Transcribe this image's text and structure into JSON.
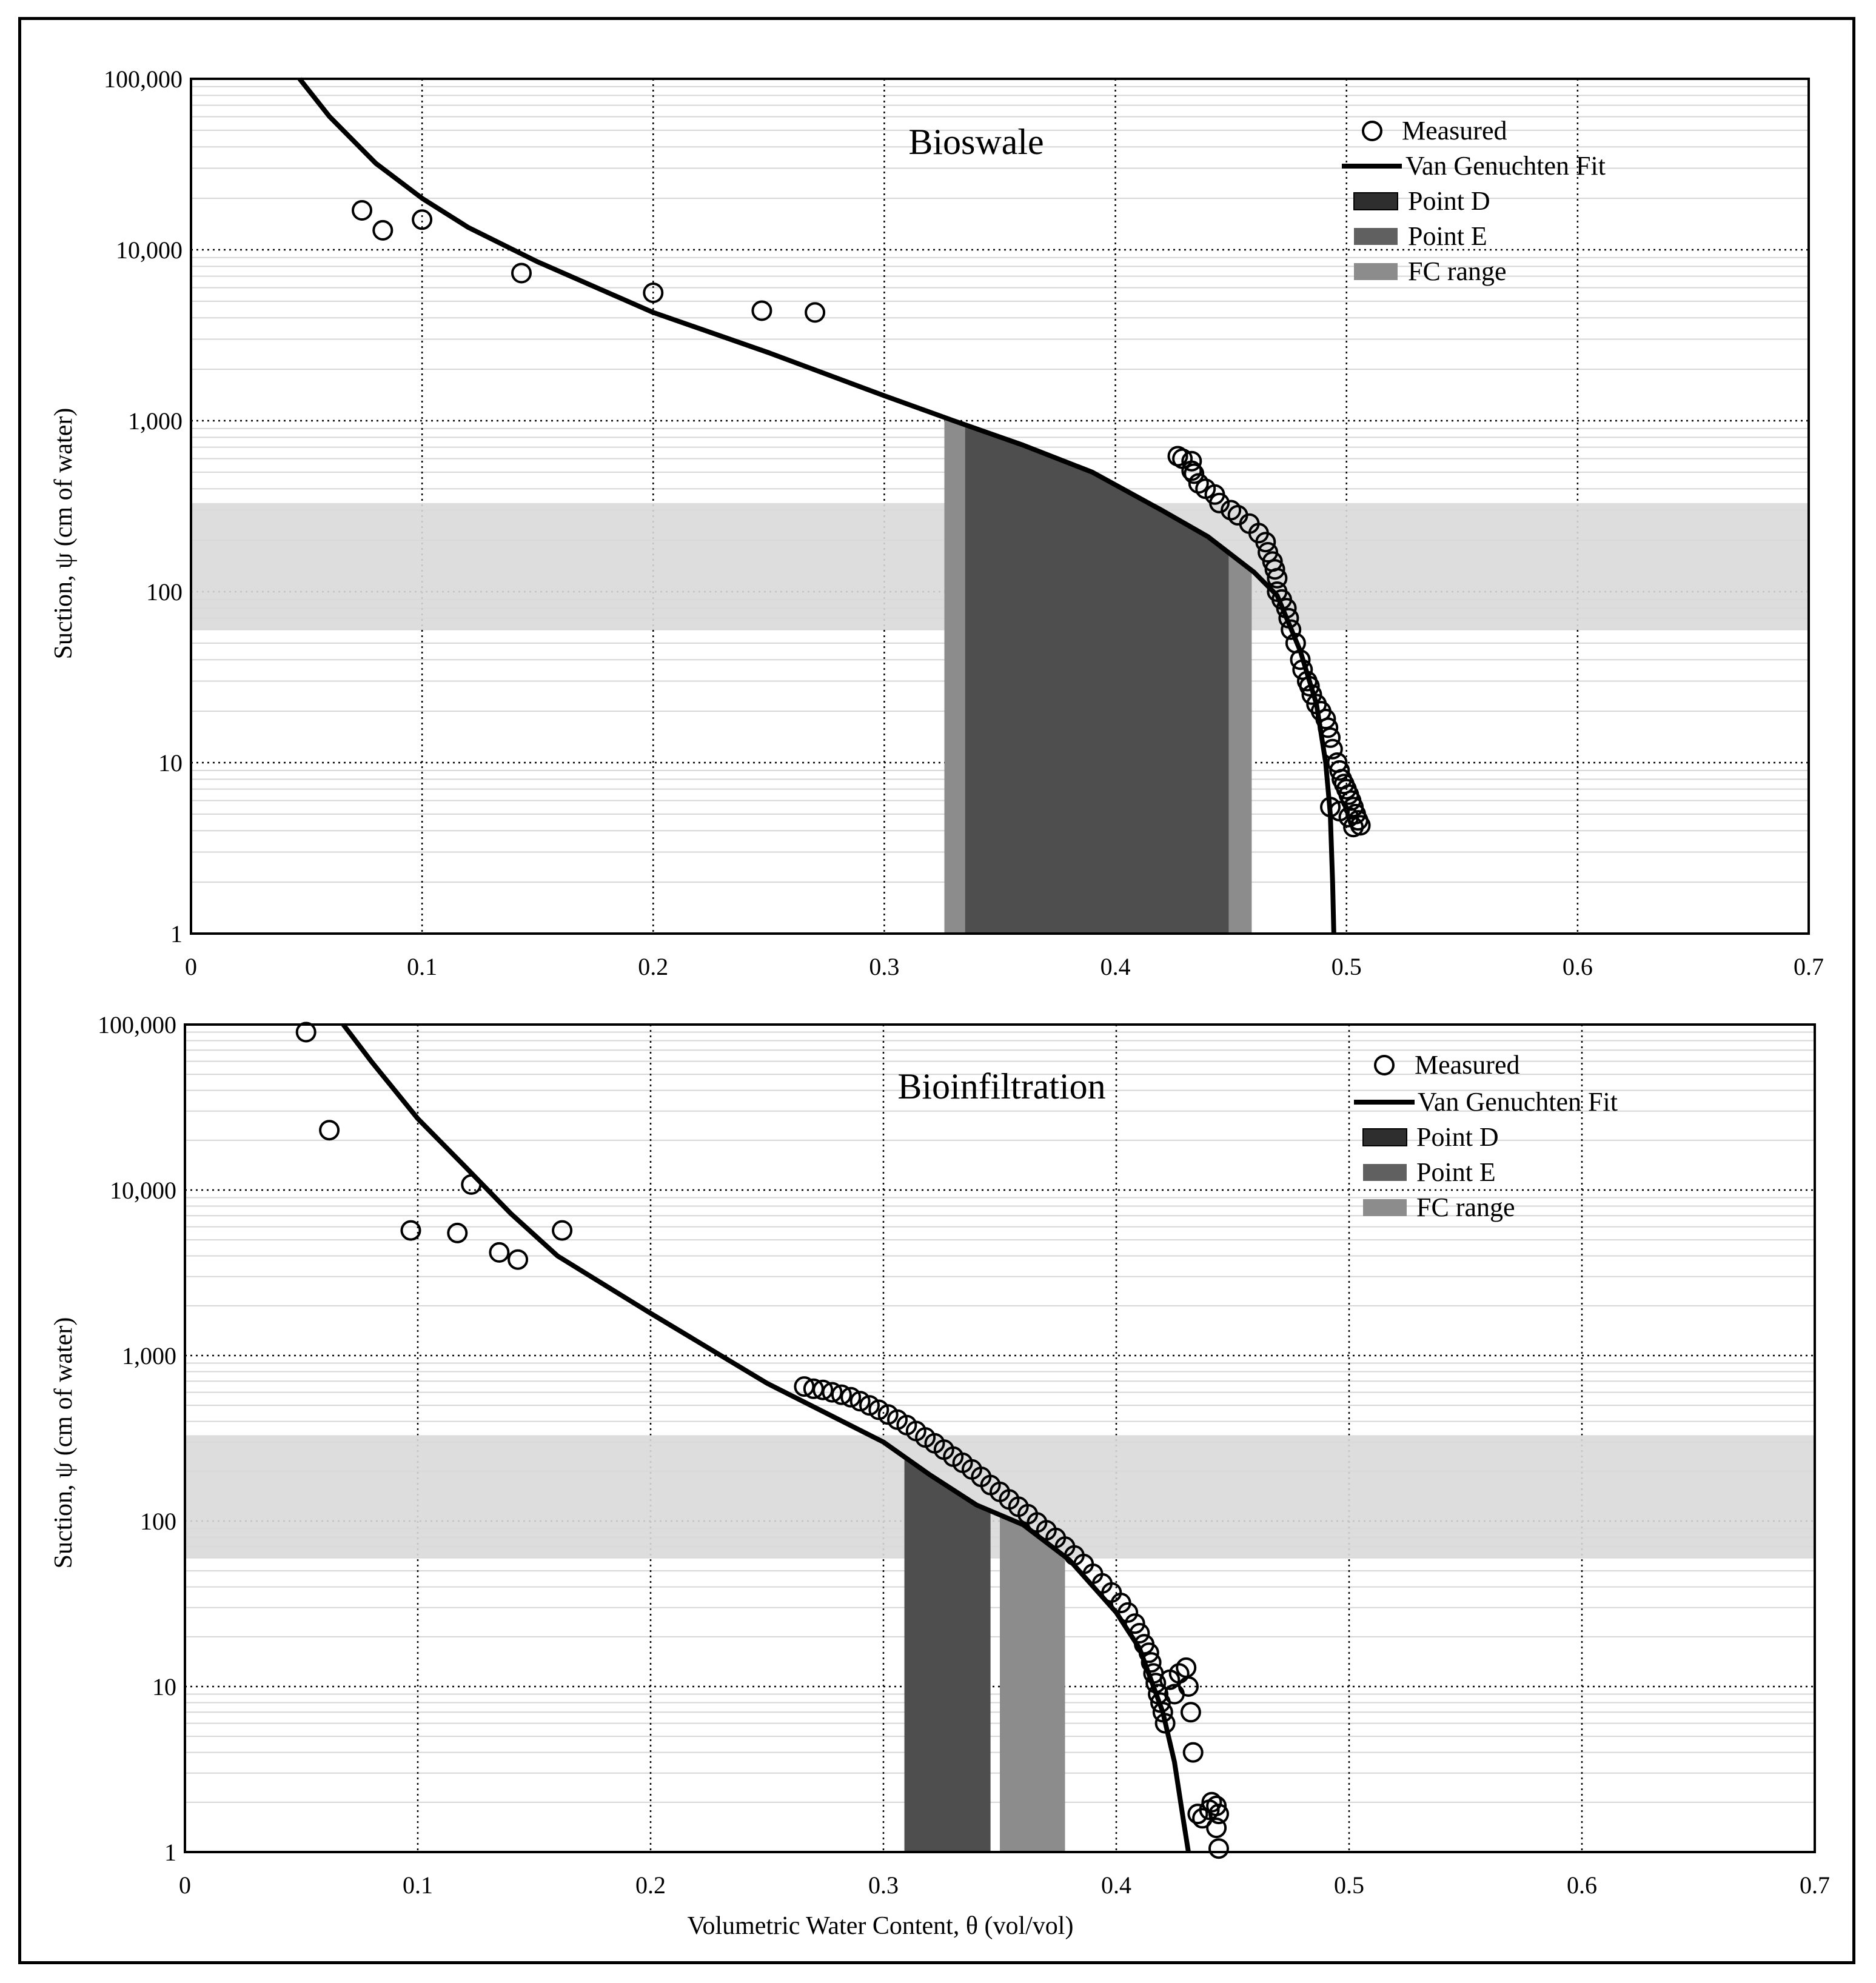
{
  "chart_data": [
    {
      "type": "scatter",
      "title": "Bioswale",
      "xlabel": "",
      "ylabel": "Suction, ψ (cm of water)",
      "xlim": [
        0,
        0.7
      ],
      "ylim": [
        1,
        100000
      ],
      "yscale": "log",
      "grid": true,
      "legend_position": "top-right",
      "xticks": [
        "0",
        "0.1",
        "0.2",
        "0.3",
        "0.4",
        "0.5",
        "0.6",
        "0.7"
      ],
      "yticks": [
        "1",
        "10",
        "100",
        "1,000",
        "10,000",
        "100,000"
      ],
      "legend": {
        "measured": "Measured",
        "fit": "Van Genuchten Fit",
        "point_d": "Point D",
        "point_e": "Point E",
        "fc_range": "FC range"
      },
      "colors": {
        "point_d": "#2e2e2e",
        "point_e": "#606060",
        "fc_range": "#8c8c8c",
        "suction_band": "#d9d9d9"
      },
      "suction_band": [
        60,
        330
      ],
      "point_d_range": [
        0.335,
        0.449
      ],
      "point_e_range": [
        0.335,
        0.449
      ],
      "fc_range": [
        0.326,
        0.459
      ],
      "fit_curve": [
        [
          0.047,
          100000
        ],
        [
          0.06,
          60000
        ],
        [
          0.08,
          32000
        ],
        [
          0.1,
          20000
        ],
        [
          0.12,
          13500
        ],
        [
          0.15,
          8500
        ],
        [
          0.2,
          4300
        ],
        [
          0.25,
          2500
        ],
        [
          0.3,
          1400
        ],
        [
          0.33,
          1000
        ],
        [
          0.36,
          720
        ],
        [
          0.39,
          500
        ],
        [
          0.42,
          300
        ],
        [
          0.44,
          210
        ],
        [
          0.46,
          130
        ],
        [
          0.47,
          95
        ],
        [
          0.48,
          45
        ],
        [
          0.487,
          22
        ],
        [
          0.491,
          10
        ],
        [
          0.493,
          5
        ],
        [
          0.494,
          2
        ],
        [
          0.4945,
          1
        ]
      ],
      "measured": [
        [
          0.074,
          17000
        ],
        [
          0.083,
          13000
        ],
        [
          0.1,
          15000
        ],
        [
          0.143,
          7300
        ],
        [
          0.2,
          5600
        ],
        [
          0.247,
          4400
        ],
        [
          0.27,
          4300
        ],
        [
          0.427,
          620
        ],
        [
          0.429,
          600
        ],
        [
          0.433,
          580
        ],
        [
          0.433,
          510
        ],
        [
          0.434,
          490
        ],
        [
          0.436,
          430
        ],
        [
          0.439,
          400
        ],
        [
          0.443,
          370
        ],
        [
          0.445,
          330
        ],
        [
          0.45,
          300
        ],
        [
          0.453,
          280
        ],
        [
          0.458,
          250
        ],
        [
          0.462,
          220
        ],
        [
          0.465,
          195
        ],
        [
          0.466,
          170
        ],
        [
          0.468,
          150
        ],
        [
          0.469,
          135
        ],
        [
          0.47,
          120
        ],
        [
          0.47,
          100
        ],
        [
          0.472,
          90
        ],
        [
          0.474,
          80
        ],
        [
          0.475,
          70
        ],
        [
          0.476,
          60
        ],
        [
          0.478,
          50
        ],
        [
          0.48,
          40
        ],
        [
          0.481,
          35
        ],
        [
          0.483,
          30
        ],
        [
          0.484,
          28
        ],
        [
          0.485,
          25
        ],
        [
          0.487,
          22
        ],
        [
          0.489,
          20
        ],
        [
          0.491,
          18
        ],
        [
          0.492,
          16
        ],
        [
          0.493,
          14
        ],
        [
          0.494,
          12
        ],
        [
          0.496,
          10
        ],
        [
          0.497,
          9
        ],
        [
          0.498,
          8
        ],
        [
          0.499,
          7.5
        ],
        [
          0.5,
          7
        ],
        [
          0.501,
          6.5
        ],
        [
          0.502,
          6
        ],
        [
          0.503,
          5.5
        ],
        [
          0.504,
          5
        ],
        [
          0.505,
          4.6
        ],
        [
          0.506,
          4.3
        ],
        [
          0.493,
          5.5
        ],
        [
          0.497,
          5.2
        ],
        [
          0.501,
          4.8
        ],
        [
          0.503,
          4.2
        ]
      ]
    },
    {
      "type": "scatter",
      "title": "Bioinfiltration",
      "xlabel": "Volumetric Water Content, θ (vol/vol)",
      "ylabel": "Suction, ψ (cm of water)",
      "xlim": [
        0,
        0.7
      ],
      "ylim": [
        1,
        100000
      ],
      "yscale": "log",
      "grid": true,
      "legend_position": "top-right",
      "xticks": [
        "0",
        "0.1",
        "0.2",
        "0.3",
        "0.4",
        "0.5",
        "0.6",
        "0.7"
      ],
      "yticks": [
        "1",
        "10",
        "100",
        "1,000",
        "10,000",
        "100,000"
      ],
      "legend": {
        "measured": "Measured",
        "fit": "Van Genuchten Fit",
        "point_d": "Point D",
        "point_e": "Point E",
        "fc_range": "FC range"
      },
      "colors": {
        "point_d": "#2e2e2e",
        "point_e": "#606060",
        "fc_range": "#8c8c8c",
        "suction_band": "#d9d9d9"
      },
      "suction_band": [
        60,
        330
      ],
      "point_d_range": [
        0.309,
        0.346
      ],
      "point_e_range": [
        0.309,
        0.346
      ],
      "fc_range": [
        0.35,
        0.378
      ],
      "fit_curve": [
        [
          0.068,
          100000
        ],
        [
          0.08,
          60000
        ],
        [
          0.1,
          27000
        ],
        [
          0.12,
          14000
        ],
        [
          0.14,
          7200
        ],
        [
          0.16,
          4000
        ],
        [
          0.2,
          1800
        ],
        [
          0.25,
          680
        ],
        [
          0.3,
          300
        ],
        [
          0.32,
          190
        ],
        [
          0.34,
          125
        ],
        [
          0.36,
          95
        ],
        [
          0.38,
          58
        ],
        [
          0.4,
          28
        ],
        [
          0.41,
          17
        ],
        [
          0.42,
          7
        ],
        [
          0.425,
          3.5
        ],
        [
          0.429,
          1.5
        ],
        [
          0.431,
          1
        ]
      ],
      "measured": [
        [
          0.052,
          90000
        ],
        [
          0.062,
          23000
        ],
        [
          0.123,
          10800
        ],
        [
          0.097,
          5700
        ],
        [
          0.117,
          5500
        ],
        [
          0.162,
          5700
        ],
        [
          0.135,
          4200
        ],
        [
          0.143,
          3800
        ],
        [
          0.266,
          650
        ],
        [
          0.27,
          630
        ],
        [
          0.274,
          620
        ],
        [
          0.278,
          600
        ],
        [
          0.282,
          580
        ],
        [
          0.286,
          560
        ],
        [
          0.29,
          530
        ],
        [
          0.294,
          500
        ],
        [
          0.298,
          470
        ],
        [
          0.302,
          440
        ],
        [
          0.306,
          410
        ],
        [
          0.31,
          380
        ],
        [
          0.314,
          350
        ],
        [
          0.318,
          320
        ],
        [
          0.322,
          295
        ],
        [
          0.326,
          270
        ],
        [
          0.33,
          245
        ],
        [
          0.334,
          225
        ],
        [
          0.338,
          205
        ],
        [
          0.342,
          185
        ],
        [
          0.346,
          165
        ],
        [
          0.35,
          150
        ],
        [
          0.354,
          135
        ],
        [
          0.358,
          122
        ],
        [
          0.362,
          110
        ],
        [
          0.366,
          98
        ],
        [
          0.37,
          88
        ],
        [
          0.374,
          79
        ],
        [
          0.378,
          70
        ],
        [
          0.382,
          62
        ],
        [
          0.386,
          55
        ],
        [
          0.39,
          48
        ],
        [
          0.394,
          42
        ],
        [
          0.398,
          37
        ],
        [
          0.402,
          32
        ],
        [
          0.405,
          28
        ],
        [
          0.408,
          24
        ],
        [
          0.41,
          21
        ],
        [
          0.412,
          18
        ],
        [
          0.414,
          16
        ],
        [
          0.415,
          14
        ],
        [
          0.416,
          12
        ],
        [
          0.417,
          10.5
        ],
        [
          0.418,
          9
        ],
        [
          0.419,
          8
        ],
        [
          0.42,
          7
        ],
        [
          0.421,
          6
        ],
        [
          0.423,
          11
        ],
        [
          0.425,
          9
        ],
        [
          0.427,
          12
        ],
        [
          0.43,
          13
        ],
        [
          0.431,
          10
        ],
        [
          0.432,
          7
        ],
        [
          0.433,
          4
        ],
        [
          0.435,
          1.7
        ],
        [
          0.437,
          1.6
        ],
        [
          0.44,
          1.8
        ],
        [
          0.441,
          2
        ],
        [
          0.443,
          1.9
        ],
        [
          0.444,
          1.7
        ],
        [
          0.443,
          1.4
        ],
        [
          0.444,
          1.05
        ]
      ]
    }
  ]
}
